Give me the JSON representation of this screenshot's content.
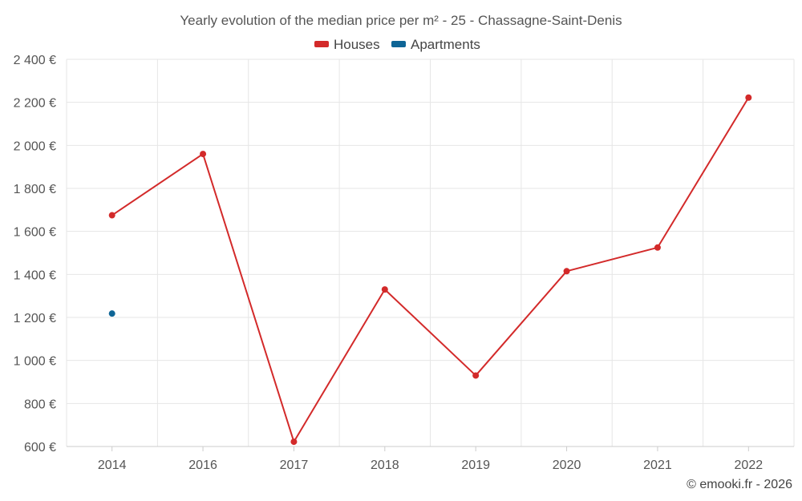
{
  "chart_data": {
    "type": "line",
    "title": "Yearly evolution of the median price per m² - 25 - Chassagne-Saint-Denis",
    "categories": [
      "2014",
      "2016",
      "2017",
      "2018",
      "2019",
      "2020",
      "2021",
      "2022"
    ],
    "series": [
      {
        "name": "Houses",
        "color": "#d32a2a",
        "values": [
          1675,
          1960,
          622,
          1330,
          930,
          1415,
          1525,
          2222
        ]
      },
      {
        "name": "Apartments",
        "color": "#0e6596",
        "values": [
          1218,
          null,
          null,
          null,
          null,
          null,
          null,
          null
        ]
      }
    ],
    "ylim": [
      600,
      2400
    ],
    "yticks": [
      600,
      800,
      1000,
      1200,
      1400,
      1600,
      1800,
      2000,
      2200,
      2400
    ],
    "ytick_labels": [
      "600 €",
      "800 €",
      "1 000 €",
      "1 200 €",
      "1 400 €",
      "1 600 €",
      "1 800 €",
      "2 000 €",
      "2 200 €",
      "2 400 €"
    ],
    "xlabel": "",
    "ylabel": "",
    "legend_position": "top-center",
    "grid": true
  },
  "credit": "© emooki.fr - 2026"
}
